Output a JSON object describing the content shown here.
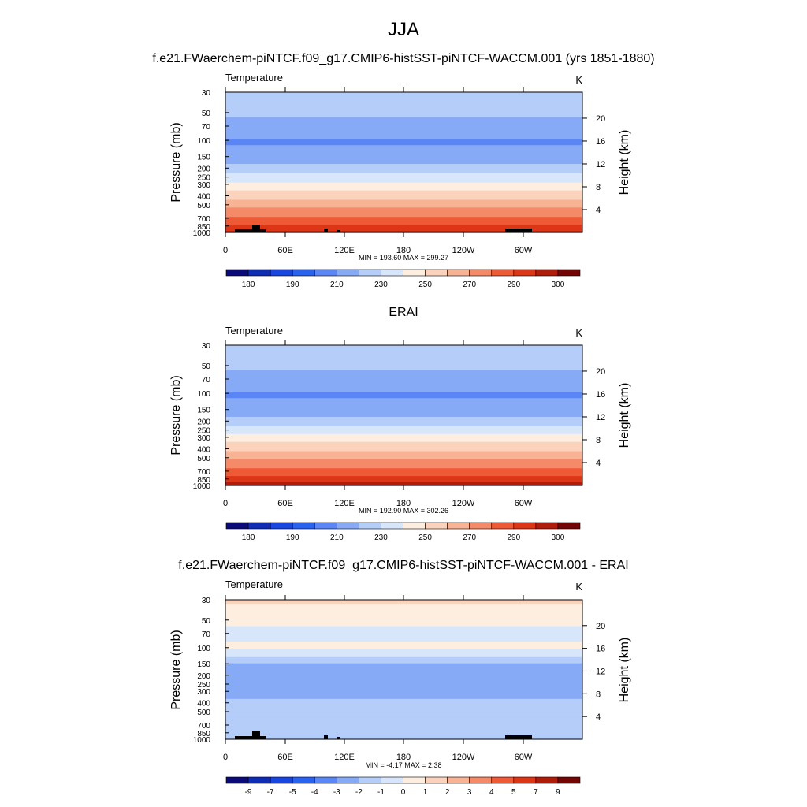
{
  "figure": {
    "title": "JJA",
    "model_title": "f.e21.FWaerchem-piNTCF.f09_g17.CMIP6-histSST-piNTCF-WACCM.001 (yrs 1851-1880)",
    "obs_title": "ERAI",
    "diff_title": "f.e21.FWaerchem-piNTCF.f09_g17.CMIP6-histSST-piNTCF-WACCM.001 - ERAI"
  },
  "colors": {
    "abs_palette": [
      "#0a0a78",
      "#0f2cb4",
      "#1846e0",
      "#2a62f0",
      "#5a87f5",
      "#87aaf7",
      "#b4cdf9",
      "#d8e6fb",
      "#fdeee0",
      "#fbd3bd",
      "#f8b294",
      "#f48a68",
      "#ee5a36",
      "#dc3617",
      "#b01c0a",
      "#730505"
    ],
    "diff_palette": [
      "#0a0a78",
      "#0f2cb4",
      "#1846e0",
      "#2a62f0",
      "#5a87f5",
      "#87aaf7",
      "#b4cdf9",
      "#d8e6fb",
      "#fdeee0",
      "#fbd3bd",
      "#f8b294",
      "#f48a68",
      "#ee5a36",
      "#dc3617",
      "#b01c0a",
      "#730505"
    ],
    "topography": "#000000"
  },
  "chart_data": [
    {
      "type": "heatmap",
      "panel": "model",
      "variable_label": "Temperature",
      "units": "K",
      "ylabel": "Pressure (mb)",
      "ylabel_right": "Height (km)",
      "x_ticks": [
        "0",
        "60E",
        "120E",
        "180",
        "120W",
        "60W"
      ],
      "y_ticks": [
        "30",
        "50",
        "70",
        "100",
        "150",
        "200",
        "250",
        "300",
        "400",
        "500",
        "700",
        "850",
        "1000"
      ],
      "y_ticks_right": [
        "20",
        "16",
        "12",
        "8",
        "4"
      ],
      "stats": "MIN = 193.60  MAX = 299.27",
      "min": 193.6,
      "max": 299.27,
      "colorbar_labels": [
        "180",
        "190",
        "210",
        "230",
        "250",
        "270",
        "290",
        "300"
      ],
      "profile_levels_mb": [
        30,
        50,
        70,
        100,
        150,
        200,
        250,
        300,
        400,
        500,
        700,
        850,
        1000
      ],
      "profile_values_K": [
        218,
        212,
        206,
        199,
        203,
        213,
        224,
        233,
        246,
        257,
        272,
        282,
        292
      ]
    },
    {
      "type": "heatmap",
      "panel": "obs",
      "variable_label": "Temperature",
      "units": "K",
      "ylabel": "Pressure (mb)",
      "ylabel_right": "Height (km)",
      "x_ticks": [
        "0",
        "60E",
        "120E",
        "180",
        "120W",
        "60W"
      ],
      "y_ticks": [
        "30",
        "50",
        "70",
        "100",
        "150",
        "200",
        "250",
        "300",
        "400",
        "500",
        "700",
        "850",
        "1000"
      ],
      "y_ticks_right": [
        "20",
        "16",
        "12",
        "8",
        "4"
      ],
      "stats": "MIN = 192.90  MAX = 302.26",
      "min": 192.9,
      "max": 302.26,
      "colorbar_labels": [
        "180",
        "190",
        "210",
        "230",
        "250",
        "270",
        "290",
        "300"
      ],
      "profile_levels_mb": [
        30,
        50,
        70,
        100,
        150,
        200,
        250,
        300,
        400,
        500,
        700,
        850,
        1000
      ],
      "profile_values_K": [
        218,
        212,
        206,
        199,
        203,
        213,
        224,
        234,
        248,
        259,
        274,
        284,
        294
      ]
    },
    {
      "type": "heatmap",
      "panel": "difference",
      "variable_label": "Temperature",
      "units": "K",
      "ylabel": "Pressure (mb)",
      "ylabel_right": "Height (km)",
      "x_ticks": [
        "0",
        "60E",
        "120E",
        "180",
        "120W",
        "60W"
      ],
      "y_ticks": [
        "30",
        "50",
        "70",
        "100",
        "150",
        "200",
        "250",
        "300",
        "400",
        "500",
        "700",
        "850",
        "1000"
      ],
      "y_ticks_right": [
        "20",
        "16",
        "12",
        "8",
        "4"
      ],
      "stats": "MIN =  -4.17  MAX =   2.38",
      "min": -4.17,
      "max": 2.38,
      "colorbar_labels": [
        "-9",
        "-7",
        "-5",
        "-4",
        "-3",
        "-2",
        "-1",
        "0",
        "1",
        "2",
        "3",
        "4",
        "5",
        "7",
        "9"
      ],
      "profile_levels_mb": [
        30,
        50,
        70,
        100,
        150,
        200,
        250,
        300,
        400,
        500,
        700,
        850,
        1000
      ],
      "profile_values_K": [
        1.2,
        0.4,
        -0.5,
        0.3,
        -2.0,
        -2.6,
        -2.5,
        -2.3,
        -1.8,
        -1.3,
        -1.0,
        -1.4,
        -1.2
      ]
    }
  ]
}
